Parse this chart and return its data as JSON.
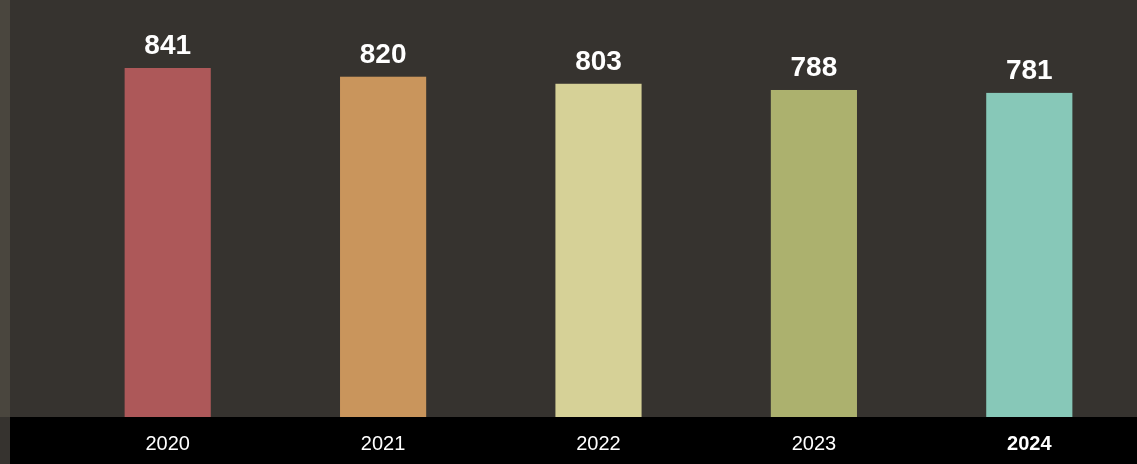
{
  "chart_data": {
    "type": "bar",
    "categories": [
      "2020",
      "2021",
      "2022",
      "2023",
      "2024"
    ],
    "values": [
      841,
      820,
      803,
      788,
      781
    ],
    "colors": [
      "#ad5859",
      "#c9955c",
      "#d6d197",
      "#acb16e",
      "#87c8b8"
    ],
    "data_labels": true
  }
}
